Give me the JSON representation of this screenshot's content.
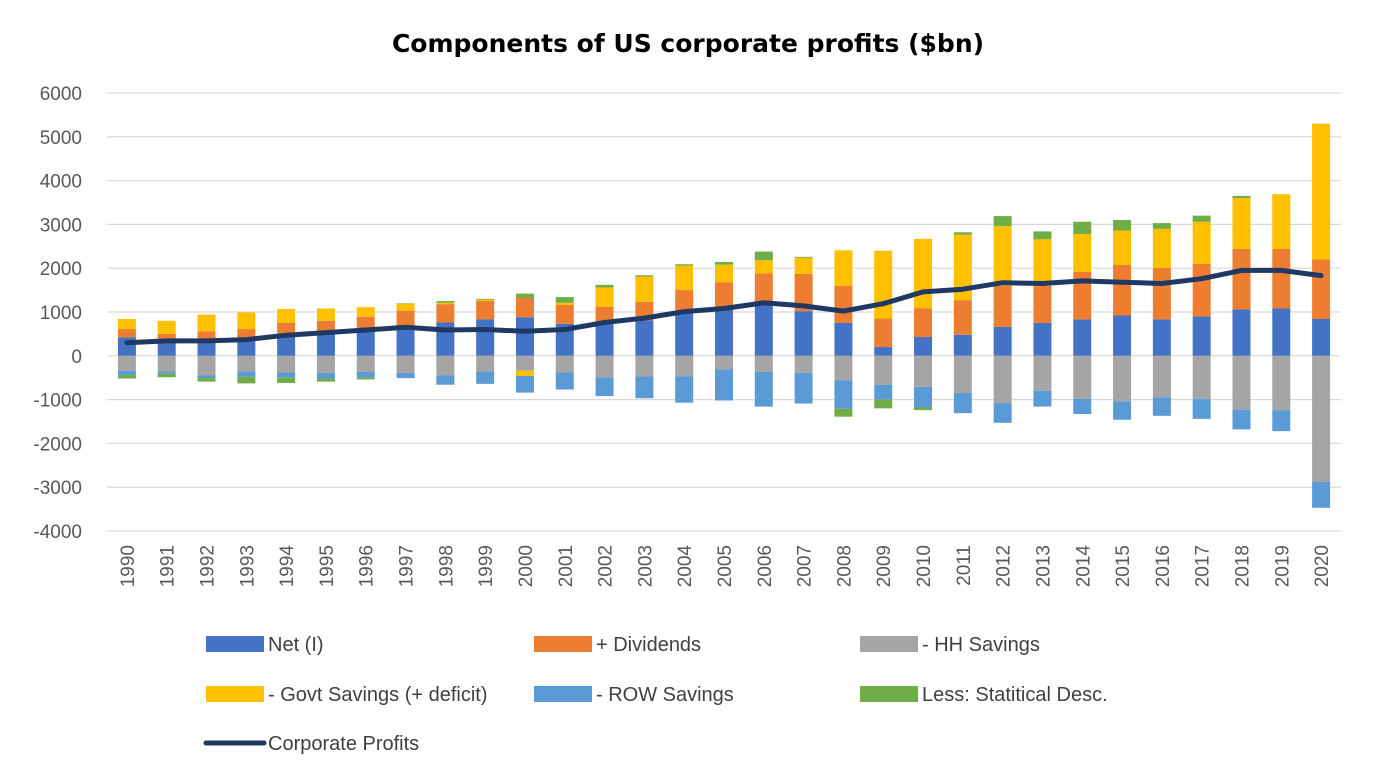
{
  "chart_data": {
    "type": "bar",
    "stacked": true,
    "title": "Components of US corporate profits ($bn)",
    "xlabel": "",
    "ylabel": "",
    "ylim": [
      -4000,
      6000
    ],
    "yticks": [
      6000,
      5000,
      4000,
      3000,
      2000,
      1000,
      0,
      -1000,
      -2000,
      -3000,
      -4000
    ],
    "grid": true,
    "legend_position": "bottom",
    "categories": [
      "1990",
      "1991",
      "1992",
      "1993",
      "1994",
      "1995",
      "1996",
      "1997",
      "1998",
      "1999",
      "2000",
      "2001",
      "2002",
      "2003",
      "2004",
      "2005",
      "2006",
      "2007",
      "2008",
      "2009",
      "2010",
      "2011",
      "2012",
      "2013",
      "2014",
      "2015",
      "2016",
      "2017",
      "2018",
      "2019",
      "2020"
    ],
    "series": [
      {
        "name": "Net (I)",
        "color": "#4472C4",
        "values": [
          420,
          300,
          320,
          360,
          470,
          510,
          570,
          640,
          760,
          830,
          880,
          730,
          780,
          810,
          1000,
          1100,
          1200,
          1020,
          750,
          200,
          430,
          480,
          660,
          750,
          830,
          920,
          830,
          900,
          1060,
          1080,
          840
        ]
      },
      {
        "name": "+ Dividends",
        "color": "#ED7D31",
        "values": [
          190,
          200,
          240,
          250,
          280,
          290,
          320,
          390,
          420,
          420,
          440,
          430,
          340,
          420,
          500,
          580,
          680,
          850,
          850,
          650,
          650,
          790,
          940,
          850,
          1090,
          1160,
          1180,
          1200,
          1380,
          1360,
          1360
        ]
      },
      {
        "name": "- HH Savings",
        "color": "#A5A5A5",
        "values": [
          -340,
          -360,
          -450,
          -360,
          -380,
          -390,
          -370,
          -390,
          -450,
          -360,
          -340,
          -380,
          -490,
          -470,
          -470,
          -310,
          -370,
          -390,
          -560,
          -660,
          -710,
          -850,
          -1080,
          -800,
          -980,
          -1040,
          -950,
          -990,
          -1230,
          -1240,
          -2880
        ]
      },
      {
        "name": "- Govt Savings (+ deficit)",
        "color": "#FFC000",
        "values": [
          230,
          300,
          380,
          380,
          320,
          280,
          220,
          160,
          30,
          30,
          -120,
          50,
          440,
          580,
          560,
          400,
          300,
          370,
          810,
          1550,
          1590,
          1500,
          1360,
          1060,
          860,
          780,
          890,
          960,
          1160,
          1250,
          3100
        ]
      },
      {
        "name": "- ROW Savings",
        "color": "#5B9BD5",
        "values": [
          -100,
          -50,
          -60,
          -120,
          -120,
          -130,
          -130,
          -120,
          -210,
          -280,
          -380,
          -390,
          -430,
          -500,
          -600,
          -710,
          -790,
          -700,
          -650,
          -340,
          -470,
          -460,
          -450,
          -360,
          -350,
          -420,
          -420,
          -450,
          -450,
          -480,
          -590
        ]
      },
      {
        "name": "Less: Statitical Desc.",
        "color": "#70AD47",
        "values": [
          -80,
          -80,
          -80,
          -150,
          -120,
          -70,
          -40,
          10,
          40,
          20,
          100,
          130,
          60,
          30,
          30,
          60,
          200,
          20,
          -180,
          -200,
          -60,
          50,
          230,
          180,
          280,
          240,
          130,
          140,
          50,
          0,
          0
        ]
      }
    ],
    "line": {
      "name": "Corporate Profits",
      "color": "#1F3864",
      "values": [
        300,
        340,
        340,
        370,
        470,
        530,
        590,
        650,
        590,
        600,
        560,
        600,
        760,
        860,
        1010,
        1080,
        1210,
        1140,
        1020,
        1190,
        1460,
        1520,
        1670,
        1650,
        1710,
        1680,
        1650,
        1760,
        1950,
        1950,
        1830
      ]
    }
  }
}
